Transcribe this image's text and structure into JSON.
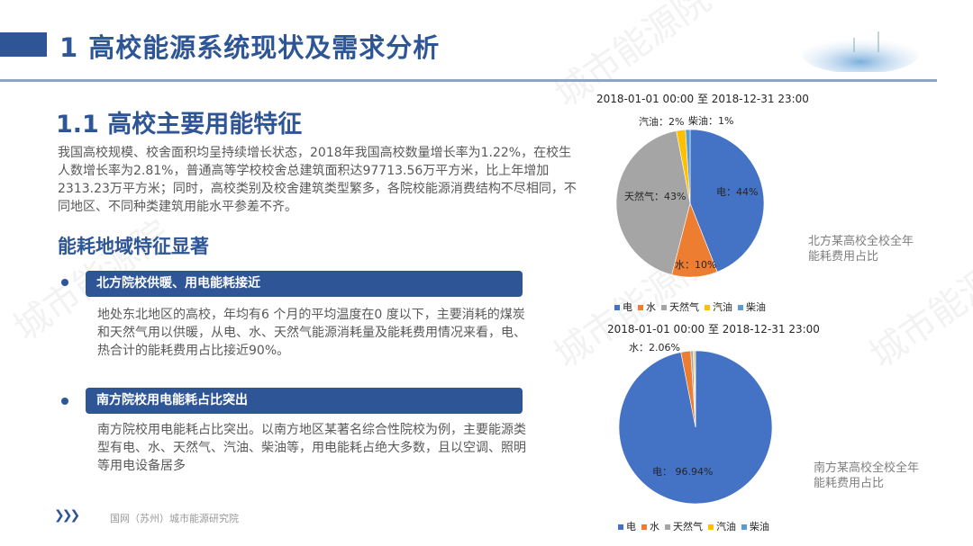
{
  "header": {
    "title": "1  高校能源系统现状及需求分析"
  },
  "watermark": "城市能源院",
  "section": {
    "title": "1.1 高校主要用能特征",
    "intro": "我国高校规模、校舍面积均呈持续增长状态，2018年我国高校数量增长率为1.22%，在校生人数增长率为2.81%，普通高等学校校舍总建筑面积达97713.56万平方米，比上年增加2313.23万平方米；同时，高校类别及校舍建筑类型繁多，各院校能源消费结构不尽相同，不同地区、不同种类建筑用能水平参差不齐。",
    "subtitle": "能耗地域特征显著",
    "points": [
      {
        "heading": "北方院校供暖、用电能耗接近",
        "body": "地处东北地区的高校，年均有6 个月的平均温度在0 度以下，主要消耗的煤炭和天然气用以供暖，从电、水、天然气能源消耗量及能耗费用情况来看，电、热合计的能耗费用占比接近90%。"
      },
      {
        "heading": "南方院校用电能耗占比突出",
        "body": "南方院校用电能耗占比突出。以南方地区某著名综合性院校为例，主要能源类型有电、水、天然气、汽油、柴油等，用电能耗占绝大多数，且以空调、照明等用电设备居多"
      }
    ]
  },
  "footer": {
    "org": "国网（苏州）城市能源研究院"
  },
  "chart_data": [
    {
      "type": "pie",
      "title": "2018-01-01 00:00 至 2018-12-31 23:00",
      "caption": "北方某高校全校全年能耗费用占比",
      "categories": [
        "电",
        "水",
        "天然气",
        "汽油",
        "柴油"
      ],
      "values": [
        44,
        10,
        43,
        2,
        1
      ],
      "labels": [
        "电：44%",
        "水：10%",
        "天然气：43%",
        "汽油：2%",
        "柴油：1%"
      ],
      "colors": [
        "#4472c4",
        "#ed7d31",
        "#a5a5a5",
        "#ffc000",
        "#5b9bd5"
      ],
      "legend": "bottom"
    },
    {
      "type": "pie",
      "title": "2018-01-01 00:00 至 2018-12-31 23:00",
      "caption": "南方某高校全校全年能耗费用占比",
      "categories": [
        "电",
        "水",
        "天然气",
        "汽油",
        "柴油"
      ],
      "values": [
        96.94,
        2.06,
        0.5,
        0.3,
        0.2
      ],
      "labels": [
        "电： 96.94%",
        "水：2.06%"
      ],
      "colors": [
        "#4472c4",
        "#ed7d31",
        "#a5a5a5",
        "#ffc000",
        "#5b9bd5"
      ],
      "legend": "bottom"
    }
  ]
}
